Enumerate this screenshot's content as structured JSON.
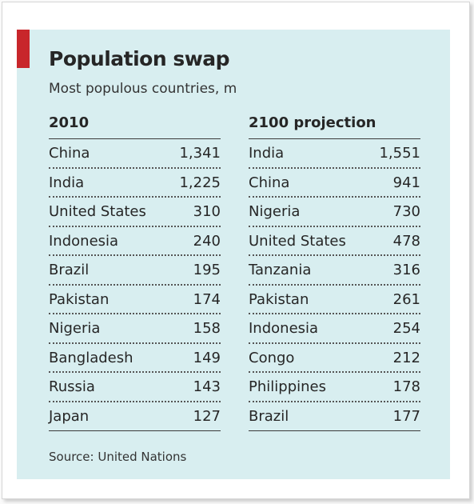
{
  "chart_data": {
    "type": "table",
    "title": "Population swap",
    "subtitle": "Most populous countries, m",
    "source": "Source: United Nations",
    "tables": [
      {
        "header": "2010",
        "rows": [
          {
            "country": "China",
            "value": "1,341"
          },
          {
            "country": "India",
            "value": "1,225"
          },
          {
            "country": "United States",
            "value": "310"
          },
          {
            "country": "Indonesia",
            "value": "240"
          },
          {
            "country": "Brazil",
            "value": "195"
          },
          {
            "country": "Pakistan",
            "value": "174"
          },
          {
            "country": "Nigeria",
            "value": "158"
          },
          {
            "country": "Bangladesh",
            "value": "149"
          },
          {
            "country": "Russia",
            "value": "143"
          },
          {
            "country": "Japan",
            "value": "127"
          }
        ]
      },
      {
        "header": "2100 projection",
        "rows": [
          {
            "country": "India",
            "value": "1,551"
          },
          {
            "country": "China",
            "value": "941"
          },
          {
            "country": "Nigeria",
            "value": "730"
          },
          {
            "country": "United States",
            "value": "478"
          },
          {
            "country": "Tanzania",
            "value": "316"
          },
          {
            "country": "Pakistan",
            "value": "261"
          },
          {
            "country": "Indonesia",
            "value": "254"
          },
          {
            "country": "Congo",
            "value": "212"
          },
          {
            "country": "Philippines",
            "value": "178"
          },
          {
            "country": "Brazil",
            "value": "177"
          }
        ]
      }
    ]
  },
  "colors": {
    "card_background": "#d8eef0",
    "accent_tag": "#c8262b",
    "text": "#262626"
  }
}
